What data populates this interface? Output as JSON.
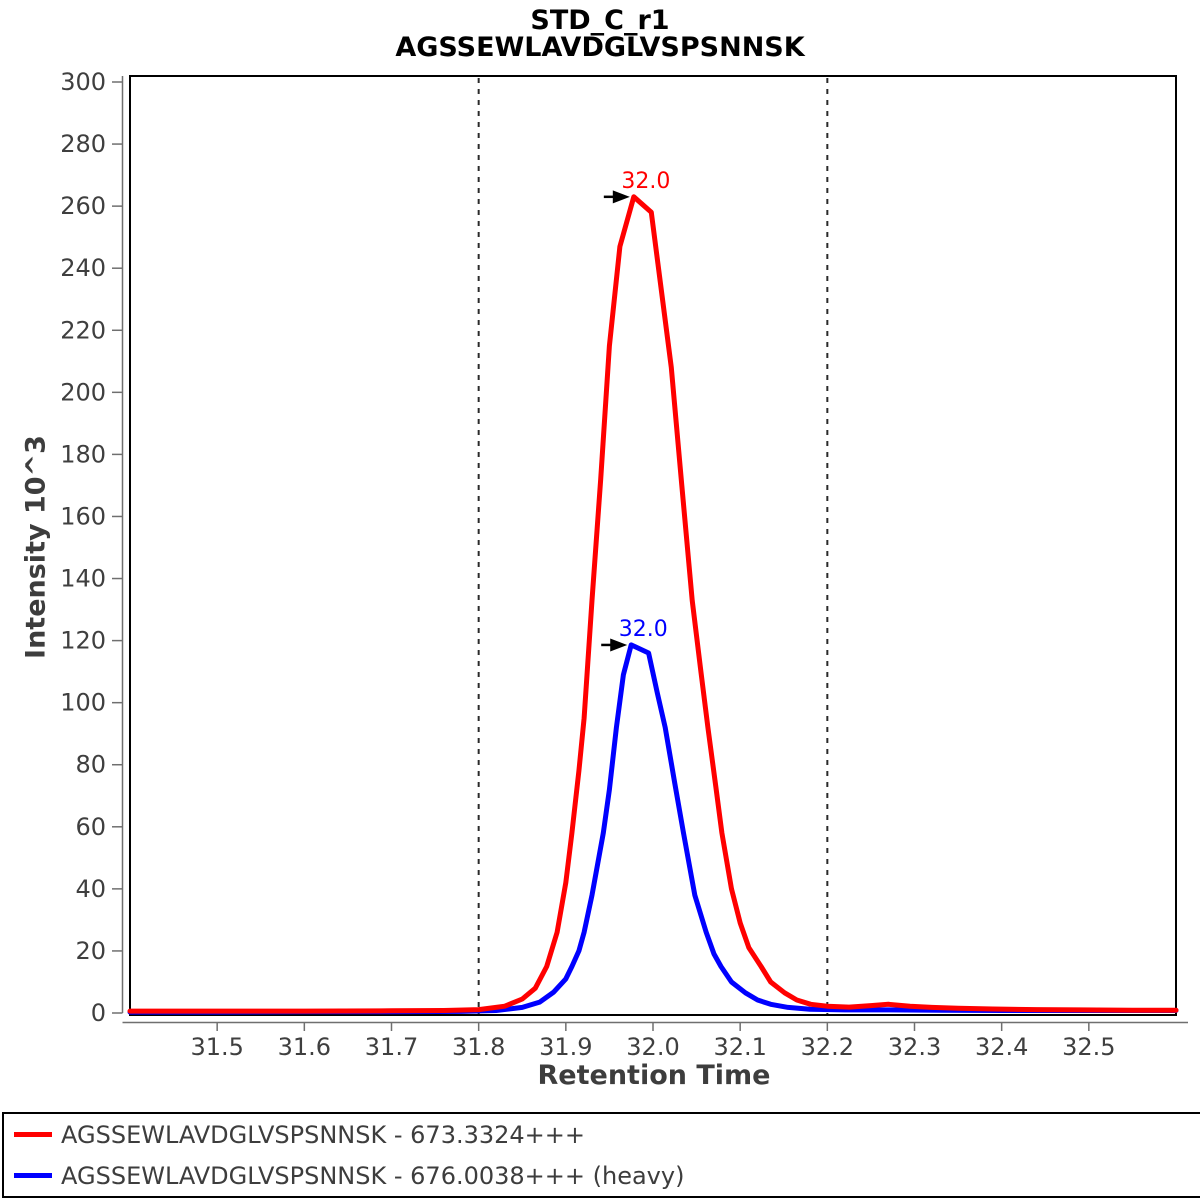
{
  "chart_data": {
    "type": "line",
    "title": "STD_C_r1",
    "subtitle": "AGSSEWLAVDGLVSPSNNSK",
    "xlabel": "Retention Time",
    "ylabel": "Intensity 10^3",
    "xlim": [
      31.4,
      32.6
    ],
    "ylim": [
      0,
      300
    ],
    "x_ticks": [
      31.5,
      31.6,
      31.7,
      31.8,
      31.9,
      32.0,
      32.1,
      32.2,
      32.3,
      32.4,
      32.5
    ],
    "y_ticks": [
      0,
      20,
      40,
      60,
      80,
      100,
      120,
      140,
      160,
      180,
      200,
      220,
      240,
      260,
      280,
      300
    ],
    "grid": false,
    "legend_position": "bottom",
    "peak_boundaries": {
      "start_rt": 31.8,
      "end_rt": 32.2,
      "style": "dashed",
      "color": "#2a2a2a"
    },
    "series": [
      {
        "name": "AGSSEWLAVDGLVSPSNNSK - 673.3324+++",
        "id": "light",
        "color": "#ff0000",
        "peak_label": "32.0",
        "peak_rt": 31.978,
        "peak_intensity": 263,
        "arrow_color": "#000000",
        "points": [
          [
            31.4,
            0.6
          ],
          [
            31.5,
            0.6
          ],
          [
            31.6,
            0.6
          ],
          [
            31.7,
            0.7
          ],
          [
            31.76,
            0.8
          ],
          [
            31.8,
            1.1
          ],
          [
            31.83,
            2.2
          ],
          [
            31.85,
            4.5
          ],
          [
            31.865,
            8
          ],
          [
            31.878,
            15
          ],
          [
            31.89,
            26
          ],
          [
            31.9,
            42
          ],
          [
            31.907,
            58
          ],
          [
            31.915,
            78
          ],
          [
            31.921,
            95
          ],
          [
            31.93,
            133
          ],
          [
            31.94,
            172
          ],
          [
            31.95,
            215
          ],
          [
            31.962,
            247
          ],
          [
            31.978,
            263
          ],
          [
            31.998,
            258
          ],
          [
            32.01,
            232
          ],
          [
            32.021,
            208
          ],
          [
            32.033,
            170
          ],
          [
            32.045,
            133
          ],
          [
            32.055,
            110
          ],
          [
            32.063,
            92
          ],
          [
            32.072,
            73
          ],
          [
            32.079,
            58
          ],
          [
            32.09,
            40
          ],
          [
            32.1,
            29
          ],
          [
            32.11,
            21
          ],
          [
            32.124,
            15
          ],
          [
            32.135,
            10
          ],
          [
            32.151,
            6.5
          ],
          [
            32.165,
            4.2
          ],
          [
            32.181,
            2.8
          ],
          [
            32.2,
            2.2
          ],
          [
            32.225,
            1.9
          ],
          [
            32.25,
            2.4
          ],
          [
            32.27,
            2.8
          ],
          [
            32.295,
            2.2
          ],
          [
            32.32,
            1.8
          ],
          [
            32.35,
            1.5
          ],
          [
            32.39,
            1.3
          ],
          [
            32.44,
            1.1
          ],
          [
            32.49,
            1.0
          ],
          [
            32.55,
            0.9
          ],
          [
            32.6,
            0.9
          ]
        ]
      },
      {
        "name": "AGSSEWLAVDGLVSPSNNSK - 676.0038+++ (heavy)",
        "id": "heavy",
        "color": "#0000ff",
        "peak_label": "32.0",
        "peak_rt": 31.975,
        "peak_intensity": 118.6,
        "arrow_color": "#000000",
        "points": [
          [
            31.4,
            0.3
          ],
          [
            31.5,
            0.3
          ],
          [
            31.6,
            0.4
          ],
          [
            31.7,
            0.4
          ],
          [
            31.78,
            0.5
          ],
          [
            31.82,
            0.8
          ],
          [
            31.85,
            1.8
          ],
          [
            31.87,
            3.5
          ],
          [
            31.886,
            6.7
          ],
          [
            31.9,
            11
          ],
          [
            31.907,
            15
          ],
          [
            31.915,
            20
          ],
          [
            31.921,
            26
          ],
          [
            31.93,
            38
          ],
          [
            31.943,
            58
          ],
          [
            31.95,
            72
          ],
          [
            31.958,
            92
          ],
          [
            31.966,
            109
          ],
          [
            31.975,
            118.6
          ],
          [
            31.995,
            116
          ],
          [
            32.005,
            103
          ],
          [
            32.014,
            92
          ],
          [
            32.025,
            74
          ],
          [
            32.035,
            58
          ],
          [
            32.048,
            38
          ],
          [
            32.061,
            26
          ],
          [
            32.07,
            19
          ],
          [
            32.078,
            15
          ],
          [
            32.09,
            10
          ],
          [
            32.106,
            6.5
          ],
          [
            32.12,
            4.2
          ],
          [
            32.135,
            2.8
          ],
          [
            32.155,
            1.8
          ],
          [
            32.18,
            1.2
          ],
          [
            32.22,
            1.0
          ],
          [
            32.27,
            1.0
          ],
          [
            32.33,
            0.9
          ],
          [
            32.4,
            0.8
          ],
          [
            32.5,
            0.8
          ],
          [
            32.6,
            0.8
          ]
        ]
      }
    ],
    "style": {
      "axis_color": "#6f6f6f",
      "tick_label_color": "#3f3f3f",
      "border_color": "#000000",
      "annotation_font_size": 22,
      "tick_font_size": 24
    }
  }
}
